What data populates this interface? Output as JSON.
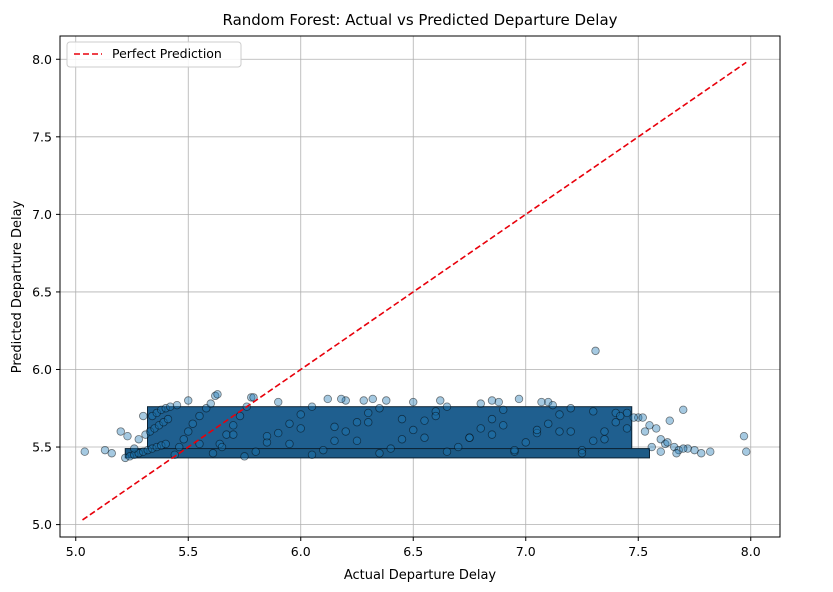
{
  "chart_data": {
    "type": "scatter",
    "title": "Random Forest: Actual vs Predicted Departure Delay",
    "xlabel": "Actual Departure Delay",
    "ylabel": "Predicted Departure Delay",
    "xlim": [
      4.93,
      8.13
    ],
    "ylim": [
      4.92,
      8.15
    ],
    "x_ticks": [
      "5.0",
      "5.5",
      "6.0",
      "6.5",
      "7.0",
      "7.5",
      "8.0"
    ],
    "y_ticks": [
      "5.0",
      "5.5",
      "6.0",
      "6.5",
      "7.0",
      "7.5",
      "8.0"
    ],
    "grid": true,
    "legend": {
      "location": "upper-left",
      "entries": [
        "Perfect Prediction"
      ]
    },
    "colors": {
      "points": "#1f77b4",
      "point_edge": "#000000",
      "reference_line": "#e8000b",
      "grid": "#b0b0b0"
    },
    "series": [
      {
        "kind": "scatter",
        "x": [
          5.22,
          5.24,
          5.26,
          5.28,
          5.3,
          5.32,
          5.34,
          5.36,
          5.38,
          5.4,
          5.28,
          5.31,
          5.33,
          5.35,
          5.37,
          5.39,
          5.41,
          5.34,
          5.36,
          5.38,
          5.4,
          5.42,
          5.44,
          5.46,
          5.48,
          5.5,
          5.52,
          5.55,
          5.58,
          5.61,
          5.64,
          5.67,
          5.7,
          5.73,
          5.76,
          5.8,
          5.85,
          5.9,
          5.95,
          6.0,
          6.05,
          6.1,
          6.15,
          6.2,
          6.25,
          6.3,
          6.35,
          6.4,
          6.45,
          6.5,
          6.55,
          6.6,
          6.65,
          6.7,
          6.75,
          6.8,
          6.85,
          6.9,
          6.95,
          7.0,
          7.05,
          7.1,
          7.15,
          7.2,
          7.25,
          7.3,
          7.35,
          7.4,
          7.45,
          7.5,
          5.6,
          5.9,
          6.2,
          6.5,
          6.8,
          7.1,
          7.4,
          5.7,
          6.0,
          6.3,
          6.6,
          6.9,
          7.2,
          5.55,
          5.85,
          6.15,
          6.45,
          6.75,
          7.05,
          7.35,
          5.65,
          5.95,
          6.25,
          6.55,
          6.85,
          7.15,
          7.45,
          5.75,
          6.05,
          6.35,
          6.65,
          6.95,
          7.25,
          5.45,
          5.5,
          5.62,
          5.78,
          6.12,
          6.38,
          6.62,
          6.88,
          7.12,
          7.3,
          7.42,
          7.48,
          5.04,
          5.13,
          5.16,
          5.2,
          5.23,
          5.26,
          5.3,
          7.52,
          7.55,
          7.58,
          7.6,
          7.62,
          7.64,
          7.66,
          7.68,
          7.7,
          7.72,
          7.75,
          7.78,
          7.82,
          7.97,
          7.98,
          7.31,
          5.63,
          5.79,
          6.18,
          6.28,
          6.32,
          6.85,
          6.97,
          7.07,
          7.53,
          7.56,
          7.6,
          7.63,
          7.7,
          7.67
        ],
        "y": [
          5.43,
          5.44,
          5.45,
          5.46,
          5.47,
          5.48,
          5.49,
          5.5,
          5.51,
          5.52,
          5.55,
          5.58,
          5.6,
          5.62,
          5.64,
          5.66,
          5.68,
          5.7,
          5.72,
          5.74,
          5.75,
          5.76,
          5.45,
          5.5,
          5.55,
          5.6,
          5.65,
          5.7,
          5.75,
          5.46,
          5.52,
          5.58,
          5.64,
          5.7,
          5.76,
          5.47,
          5.53,
          5.59,
          5.65,
          5.71,
          5.76,
          5.48,
          5.54,
          5.6,
          5.66,
          5.72,
          5.75,
          5.49,
          5.55,
          5.61,
          5.67,
          5.73,
          5.76,
          5.5,
          5.56,
          5.62,
          5.68,
          5.74,
          5.47,
          5.53,
          5.59,
          5.65,
          5.71,
          5.75,
          5.48,
          5.54,
          5.6,
          5.66,
          5.72,
          5.69,
          5.78,
          5.79,
          5.8,
          5.79,
          5.78,
          5.79,
          5.72,
          5.58,
          5.62,
          5.66,
          5.7,
          5.64,
          5.6,
          5.52,
          5.57,
          5.63,
          5.68,
          5.56,
          5.61,
          5.55,
          5.5,
          5.52,
          5.54,
          5.56,
          5.58,
          5.6,
          5.62,
          5.44,
          5.45,
          5.46,
          5.47,
          5.48,
          5.46,
          5.77,
          5.8,
          5.83,
          5.82,
          5.81,
          5.8,
          5.8,
          5.79,
          5.77,
          5.73,
          5.7,
          5.69,
          5.47,
          5.48,
          5.46,
          5.6,
          5.57,
          5.49,
          5.7,
          5.69,
          5.64,
          5.62,
          5.55,
          5.52,
          5.67,
          5.5,
          5.48,
          5.74,
          5.49,
          5.48,
          5.46,
          5.47,
          5.57,
          5.47,
          6.12,
          5.84,
          5.82,
          5.81,
          5.8,
          5.81,
          5.8,
          5.81,
          5.79,
          5.6,
          5.5,
          5.47,
          5.53,
          5.49,
          5.46
        ]
      },
      {
        "kind": "line",
        "name": "Perfect Prediction",
        "x": [
          5.03,
          7.98
        ],
        "y": [
          5.03,
          7.98
        ]
      }
    ]
  }
}
